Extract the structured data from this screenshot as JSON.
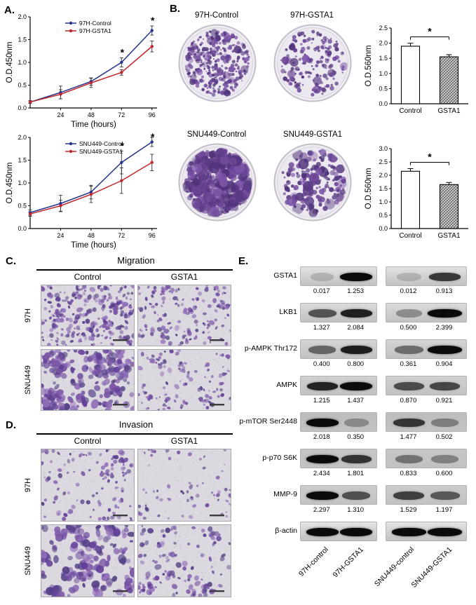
{
  "panels": {
    "A": {
      "label": "A."
    },
    "B": {
      "label": "B.",
      "dishes": [
        {
          "label": "97H-Control"
        },
        {
          "label": "97H-GSTA1"
        },
        {
          "label": "SNU449-Control"
        },
        {
          "label": "SNU449-GSTA1"
        }
      ]
    },
    "C": {
      "label": "C.",
      "title": "Migration",
      "col_headers": [
        "Control",
        "GSTA1"
      ],
      "row_labels": [
        "97H",
        "SNU449"
      ]
    },
    "D": {
      "label": "D.",
      "title": "Invasion",
      "col_headers": [
        "Control",
        "GSTA1"
      ],
      "row_labels": [
        "97H",
        "SNU449"
      ]
    },
    "E": {
      "label": "E.",
      "rows": [
        {
          "protein": "GSTA1",
          "values": [
            "0.017",
            "1.253",
            "0.012",
            "0.913"
          ]
        },
        {
          "protein": "LKB1",
          "values": [
            "1.327",
            "2.084",
            "0.500",
            "2.399"
          ]
        },
        {
          "protein": "p-AMPK Thr172",
          "values": [
            "0.400",
            "0.800",
            "0.361",
            "0.904"
          ]
        },
        {
          "protein": "AMPK",
          "values": [
            "1.215",
            "1.437",
            "0.870",
            "0.921"
          ]
        },
        {
          "protein": "p-mTOR Ser2448",
          "values": [
            "2.018",
            "0.350",
            "1.477",
            "0.502"
          ]
        },
        {
          "protein": "p-p70 S6K",
          "values": [
            "2.434",
            "1.801",
            "0.833",
            "0.600"
          ]
        },
        {
          "protein": "MMP-9",
          "values": [
            "2.297",
            "1.310",
            "1.529",
            "1.197"
          ]
        },
        {
          "protein": "β-actin",
          "values": []
        }
      ],
      "sample_labels": [
        "97H-control",
        "97H-GSTA1",
        "SNU449-control",
        "SNU449-GSTA1"
      ]
    }
  },
  "chart_data": [
    {
      "type": "line",
      "xlabel": "Time (hours)",
      "ylabel": "O.D.450nm",
      "xlim": [
        0,
        100
      ],
      "ylim": [
        0,
        2.0
      ],
      "xticks": [
        24,
        48,
        72,
        96
      ],
      "yticks": [
        "0.0",
        "0.5",
        "1.0",
        "1.5",
        "2.0"
      ],
      "x": [
        0,
        24,
        48,
        72,
        96
      ],
      "series": [
        {
          "name": "97H-Control",
          "color": "#27348b",
          "values": [
            0.13,
            0.34,
            0.58,
            1.0,
            1.7
          ],
          "errors": [
            0.03,
            0.14,
            0.08,
            0.1,
            0.1
          ]
        },
        {
          "name": "97H-GSTA1",
          "color": "#c0272d",
          "values": [
            0.13,
            0.3,
            0.55,
            0.78,
            1.35
          ],
          "errors": [
            0.03,
            0.1,
            0.1,
            0.06,
            0.12
          ]
        }
      ],
      "significance": [
        {
          "x": 72,
          "label": "*"
        },
        {
          "x": 96,
          "label": "*"
        }
      ],
      "legend_position": "top-left"
    },
    {
      "type": "line",
      "xlabel": "Time (hours)",
      "ylabel": "O.D.450nm",
      "xlim": [
        0,
        100
      ],
      "ylim": [
        0,
        2.0
      ],
      "xticks": [
        24,
        48,
        72,
        96
      ],
      "yticks": [
        "0.0",
        "0.5",
        "1.0",
        "1.5",
        "2.0"
      ],
      "x": [
        0,
        24,
        48,
        72,
        96
      ],
      "series": [
        {
          "name": "SNU449-Control",
          "color": "#27348b",
          "values": [
            0.35,
            0.55,
            0.8,
            1.45,
            1.9
          ],
          "errors": [
            0.06,
            0.18,
            0.15,
            0.25,
            0.1
          ]
        },
        {
          "name": "SNU449-GSTA1",
          "color": "#c0272d",
          "values": [
            0.32,
            0.5,
            0.75,
            1.05,
            1.45
          ],
          "errors": [
            0.05,
            0.12,
            0.18,
            0.28,
            0.18
          ]
        }
      ],
      "significance": [
        {
          "x": 72,
          "label": "*"
        },
        {
          "x": 96,
          "label": "*"
        }
      ],
      "legend_position": "top-left"
    },
    {
      "type": "bar",
      "ylabel": "O.D.560nm",
      "categories": [
        "Control",
        "GSTA1"
      ],
      "values": [
        1.9,
        1.55
      ],
      "errors": [
        0.1,
        0.07
      ],
      "ylim": [
        0,
        2.5
      ],
      "yticks": [
        "0.0",
        "0.5",
        "1.0",
        "1.5",
        "2.0",
        "2.5"
      ],
      "significance": "*"
    },
    {
      "type": "bar",
      "ylabel": "O.D.560nm",
      "categories": [
        "Control",
        "GSTA1"
      ],
      "values": [
        2.15,
        1.65
      ],
      "errors": [
        0.1,
        0.08
      ],
      "ylim": [
        0,
        3.0
      ],
      "yticks": [
        "0.0",
        "0.5",
        "1.0",
        "1.5",
        "2.0",
        "2.5",
        "3.0"
      ],
      "significance": "*"
    }
  ]
}
